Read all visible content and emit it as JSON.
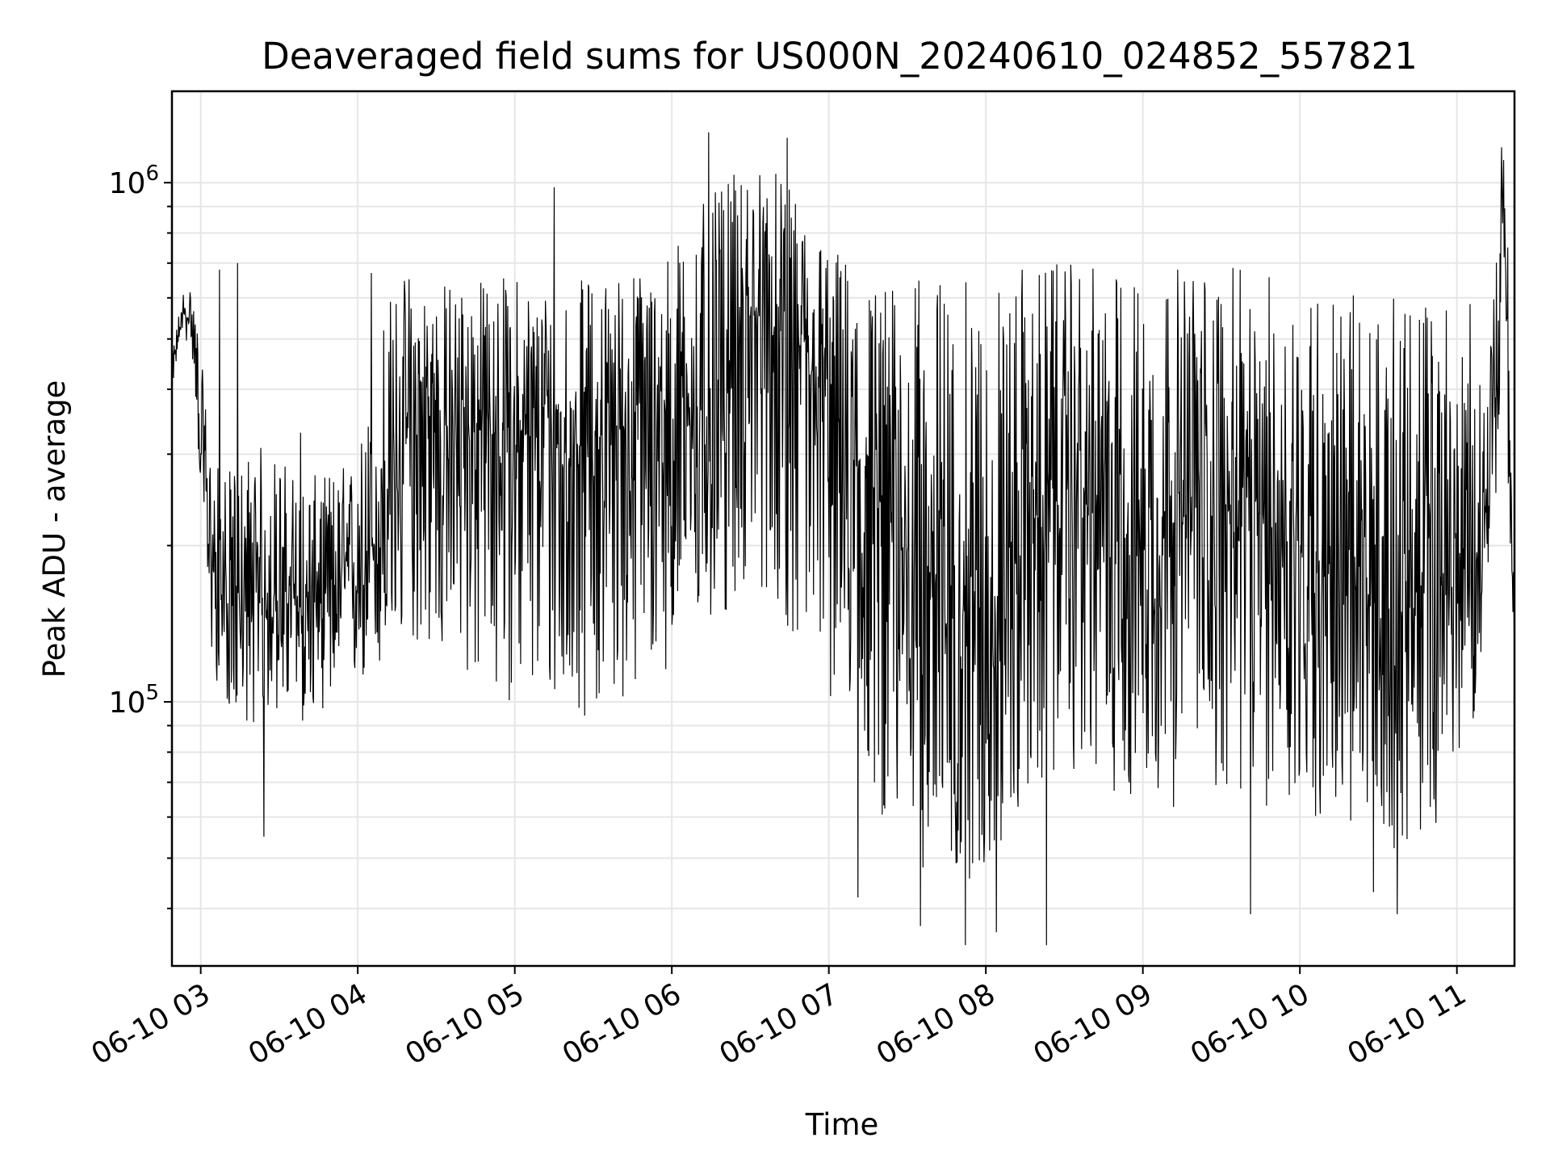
{
  "chart_data": {
    "type": "line",
    "title": "Deaveraged field sums for US000N_20240610_024852_557821",
    "xlabel": "Time",
    "ylabel": "Peak ADU - average",
    "xscale": "time",
    "yscale": "log",
    "xlim": [
      "2024-06-10 02:49",
      "2024-06-10 11:22"
    ],
    "ylim": [
      31000,
      1500000
    ],
    "grid": true,
    "legend": "none",
    "line_color": "#000000",
    "x_ticks": [
      {
        "value": "2024-06-10 03:00",
        "label": "06-10 03"
      },
      {
        "value": "2024-06-10 04:00",
        "label": "06-10 04"
      },
      {
        "value": "2024-06-10 05:00",
        "label": "06-10 05"
      },
      {
        "value": "2024-06-10 06:00",
        "label": "06-10 06"
      },
      {
        "value": "2024-06-10 07:00",
        "label": "06-10 07"
      },
      {
        "value": "2024-06-10 08:00",
        "label": "06-10 08"
      },
      {
        "value": "2024-06-10 09:00",
        "label": "06-10 09"
      },
      {
        "value": "2024-06-10 10:00",
        "label": "06-10 10"
      },
      {
        "value": "2024-06-10 11:00",
        "label": "06-10 11"
      }
    ],
    "y_major_ticks": [
      {
        "value": 100000,
        "base": "10",
        "exp": "5"
      },
      {
        "value": 1000000,
        "base": "10",
        "exp": "6"
      }
    ],
    "y_minor_ticks": [
      40000,
      50000,
      60000,
      70000,
      80000,
      90000,
      200000,
      300000,
      400000,
      500000,
      600000,
      700000,
      800000,
      900000
    ],
    "series": [
      {
        "x": [
          "2024-06-10 02:49",
          "2024-06-10 02:53",
          "2024-06-10 02:57",
          "2024-06-10 03:00",
          "2024-06-10 03:04",
          "2024-06-10 03:08",
          "2024-06-10 03:12",
          "2024-06-10 03:20",
          "2024-06-10 03:30",
          "2024-06-10 03:40",
          "2024-06-10 03:50",
          "2024-06-10 04:00",
          "2024-06-10 04:10",
          "2024-06-10 04:20",
          "2024-06-10 04:30",
          "2024-06-10 04:40",
          "2024-06-10 04:50",
          "2024-06-10 05:00",
          "2024-06-10 05:10",
          "2024-06-10 05:20",
          "2024-06-10 05:30",
          "2024-06-10 05:40",
          "2024-06-10 05:50",
          "2024-06-10 06:00",
          "2024-06-10 06:10",
          "2024-06-10 06:20",
          "2024-06-10 06:30",
          "2024-06-10 06:40",
          "2024-06-10 06:50",
          "2024-06-10 07:00",
          "2024-06-10 07:10",
          "2024-06-10 07:20",
          "2024-06-10 07:30",
          "2024-06-10 07:40",
          "2024-06-10 07:50",
          "2024-06-10 08:00",
          "2024-06-10 08:10",
          "2024-06-10 08:20",
          "2024-06-10 08:30",
          "2024-06-10 08:40",
          "2024-06-10 08:50",
          "2024-06-10 09:00",
          "2024-06-10 09:10",
          "2024-06-10 09:20",
          "2024-06-10 09:30",
          "2024-06-10 09:40",
          "2024-06-10 09:50",
          "2024-06-10 10:00",
          "2024-06-10 10:10",
          "2024-06-10 10:20",
          "2024-06-10 10:30",
          "2024-06-10 10:40",
          "2024-06-10 10:50",
          "2024-06-10 11:00",
          "2024-06-10 11:06",
          "2024-06-10 11:12",
          "2024-06-10 11:16",
          "2024-06-10 11:18",
          "2024-06-10 11:20",
          "2024-06-10 11:22"
        ],
        "median": [
          430000,
          560000,
          540000,
          330000,
          190000,
          160000,
          150000,
          155000,
          160000,
          150000,
          165000,
          175000,
          220000,
          330000,
          330000,
          340000,
          330000,
          330000,
          320000,
          300000,
          320000,
          340000,
          330000,
          340000,
          360000,
          380000,
          560000,
          500000,
          430000,
          370000,
          280000,
          230000,
          200000,
          170000,
          150000,
          150000,
          180000,
          230000,
          260000,
          230000,
          220000,
          210000,
          220000,
          230000,
          240000,
          230000,
          220000,
          200000,
          180000,
          160000,
          150000,
          150000,
          160000,
          170000,
          170000,
          250000,
          500000,
          900000,
          400000,
          120000
        ],
        "low": [
          400000,
          520000,
          450000,
          250000,
          120000,
          100000,
          95000,
          90000,
          95000,
          90000,
          100000,
          105000,
          110000,
          130000,
          120000,
          110000,
          100000,
          100000,
          95000,
          90000,
          95000,
          100000,
          100000,
          120000,
          130000,
          140000,
          170000,
          150000,
          120000,
          100000,
          80000,
          60000,
          50000,
          46000,
          44000,
          46000,
          55000,
          65000,
          75000,
          70000,
          65000,
          62000,
          62000,
          64000,
          66000,
          62000,
          60000,
          60000,
          58000,
          54000,
          52000,
          52000,
          54000,
          80000,
          90000,
          150000,
          300000,
          700000,
          200000,
          115000
        ],
        "high": [
          470000,
          620000,
          640000,
          470000,
          300000,
          280000,
          280000,
          320000,
          300000,
          270000,
          280000,
          300000,
          600000,
          700000,
          650000,
          660000,
          660000,
          670000,
          650000,
          650000,
          660000,
          680000,
          700000,
          760000,
          900000,
          1000000,
          1100000,
          1050000,
          900000,
          780000,
          700000,
          650000,
          640000,
          680000,
          650000,
          640000,
          680000,
          700000,
          700000,
          690000,
          680000,
          680000,
          690000,
          700000,
          690000,
          680000,
          670000,
          660000,
          640000,
          620000,
          600000,
          600000,
          620000,
          620000,
          580000,
          500000,
          800000,
          1150000,
          700000,
          130000
        ],
        "spikes": [
          {
            "x": "2024-06-10 03:07",
            "y": 680000
          },
          {
            "x": "2024-06-10 03:14",
            "y": 700000
          },
          {
            "x": "2024-06-10 03:24",
            "y": 55000
          },
          {
            "x": "2024-06-10 03:38",
            "y": 330000
          },
          {
            "x": "2024-06-10 04:05",
            "y": 670000
          },
          {
            "x": "2024-06-10 05:15",
            "y": 980000
          },
          {
            "x": "2024-06-10 06:14",
            "y": 1250000
          },
          {
            "x": "2024-06-10 06:44",
            "y": 1220000
          },
          {
            "x": "2024-06-10 07:11",
            "y": 42000
          },
          {
            "x": "2024-06-10 07:35",
            "y": 37000
          },
          {
            "x": "2024-06-10 07:52",
            "y": 34000
          },
          {
            "x": "2024-06-10 08:04",
            "y": 36000
          },
          {
            "x": "2024-06-10 08:23",
            "y": 34000
          },
          {
            "x": "2024-06-10 09:41",
            "y": 39000
          },
          {
            "x": "2024-06-10 10:28",
            "y": 43000
          },
          {
            "x": "2024-06-10 10:37",
            "y": 39000
          },
          {
            "x": "2024-06-10 11:17",
            "y": 1170000
          }
        ]
      }
    ]
  }
}
